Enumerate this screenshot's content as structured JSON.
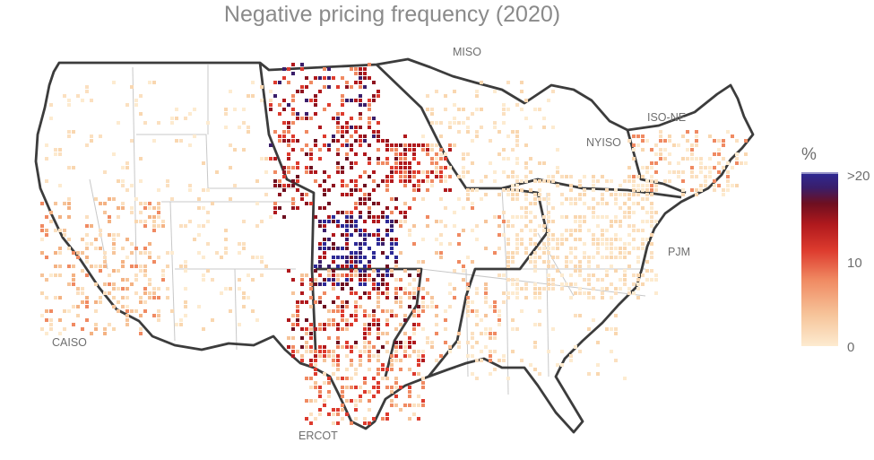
{
  "title": "Negative pricing frequency (2020)",
  "regions": [
    {
      "key": "miso",
      "label": "MISO"
    },
    {
      "key": "iso-ne",
      "label": "ISO-NE"
    },
    {
      "key": "nyiso",
      "label": "NYISO"
    },
    {
      "key": "pjm",
      "label": "PJM"
    },
    {
      "key": "caiso",
      "label": "CAISO"
    },
    {
      "key": "ercot",
      "label": "ERCOT"
    }
  ],
  "legend": {
    "unit": "%",
    "ticks": [
      ">20",
      "10",
      "0"
    ],
    "colors": [
      "#fdebd0",
      "#f6c49a",
      "#f08a62",
      "#dd3b2e",
      "#b0191d",
      "#6e0f20",
      "#3a1e6a",
      "#2d2a96"
    ]
  },
  "palette": {
    "land": "#ffffff",
    "state_border": "#c8c8c8",
    "iso_border": "#3c3c3c",
    "title": "#8a8a8a",
    "label": "#6e6e6e"
  }
}
